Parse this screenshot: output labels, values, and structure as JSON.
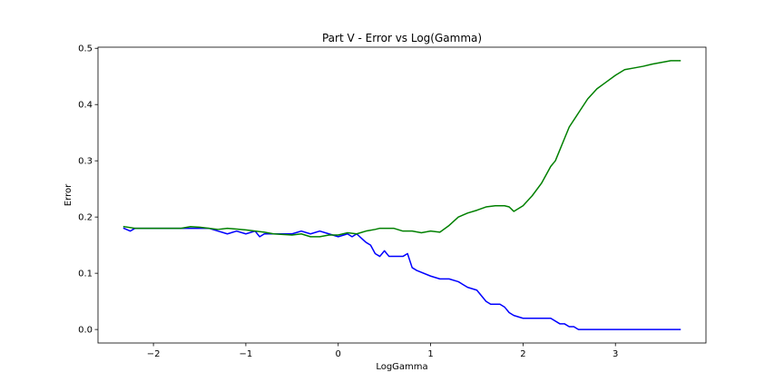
{
  "chart_data": {
    "type": "line",
    "title": "Part V - Error vs Log(Gamma)",
    "xlabel": "LogGamma",
    "ylabel": "Error",
    "xlim": [
      -2.6,
      3.98
    ],
    "ylim": [
      -0.024,
      0.502
    ],
    "xticks": [
      -2,
      -1,
      0,
      1,
      2,
      3
    ],
    "xtick_labels": [
      "−2",
      "−1",
      "0",
      "1",
      "2",
      "3"
    ],
    "yticks": [
      0.0,
      0.1,
      0.2,
      0.3,
      0.4,
      0.5
    ],
    "ytick_labels": [
      "0.0",
      "0.1",
      "0.2",
      "0.3",
      "0.4",
      "0.5"
    ],
    "grid": false,
    "series": [
      {
        "color": "#0000ff",
        "x": [
          -2.32,
          -2.25,
          -2.2,
          -2.0,
          -1.5,
          -1.4,
          -1.3,
          -1.2,
          -1.1,
          -1.0,
          -0.9,
          -0.85,
          -0.8,
          -0.7,
          -0.5,
          -0.4,
          -0.3,
          -0.2,
          -0.1,
          0.0,
          0.1,
          0.15,
          0.2,
          0.3,
          0.35,
          0.4,
          0.45,
          0.5,
          0.55,
          0.6,
          0.65,
          0.7,
          0.75,
          0.8,
          0.85,
          1.0,
          1.1,
          1.2,
          1.3,
          1.4,
          1.5,
          1.6,
          1.65,
          1.75,
          1.8,
          1.85,
          1.9,
          2.0,
          2.3,
          2.4,
          2.45,
          2.5,
          2.55,
          2.6,
          2.65,
          3.7
        ],
        "y": [
          0.18,
          0.175,
          0.18,
          0.18,
          0.18,
          0.18,
          0.175,
          0.17,
          0.175,
          0.17,
          0.175,
          0.165,
          0.17,
          0.17,
          0.17,
          0.175,
          0.17,
          0.175,
          0.17,
          0.165,
          0.17,
          0.165,
          0.17,
          0.155,
          0.15,
          0.135,
          0.13,
          0.14,
          0.13,
          0.13,
          0.13,
          0.13,
          0.135,
          0.11,
          0.105,
          0.095,
          0.09,
          0.09,
          0.085,
          0.075,
          0.07,
          0.05,
          0.045,
          0.045,
          0.04,
          0.03,
          0.025,
          0.02,
          0.02,
          0.01,
          0.01,
          0.005,
          0.005,
          0.0,
          0.0,
          0.0
        ]
      },
      {
        "color": "#008000",
        "x": [
          -2.32,
          -2.2,
          -2.0,
          -1.7,
          -1.6,
          -1.5,
          -1.4,
          -1.3,
          -1.2,
          -1.0,
          -0.9,
          -0.8,
          -0.7,
          -0.5,
          -0.4,
          -0.3,
          -0.2,
          -0.1,
          0.0,
          0.1,
          0.2,
          0.3,
          0.4,
          0.45,
          0.5,
          0.6,
          0.7,
          0.8,
          0.9,
          1.0,
          1.1,
          1.2,
          1.3,
          1.4,
          1.5,
          1.6,
          1.7,
          1.8,
          1.85,
          1.9,
          2.0,
          2.1,
          2.2,
          2.3,
          2.35,
          2.4,
          2.45,
          2.5,
          2.6,
          2.7,
          2.8,
          2.9,
          3.0,
          3.1,
          3.2,
          3.3,
          3.4,
          3.5,
          3.6,
          3.7
        ],
        "y": [
          0.183,
          0.18,
          0.18,
          0.18,
          0.183,
          0.182,
          0.18,
          0.178,
          0.18,
          0.177,
          0.175,
          0.173,
          0.17,
          0.168,
          0.17,
          0.165,
          0.165,
          0.168,
          0.168,
          0.172,
          0.17,
          0.175,
          0.178,
          0.18,
          0.18,
          0.18,
          0.175,
          0.175,
          0.172,
          0.175,
          0.173,
          0.185,
          0.2,
          0.207,
          0.212,
          0.218,
          0.22,
          0.22,
          0.218,
          0.21,
          0.22,
          0.238,
          0.26,
          0.29,
          0.3,
          0.32,
          0.34,
          0.36,
          0.385,
          0.41,
          0.428,
          0.44,
          0.452,
          0.462,
          0.465,
          0.468,
          0.472,
          0.475,
          0.478,
          0.478
        ]
      }
    ]
  }
}
